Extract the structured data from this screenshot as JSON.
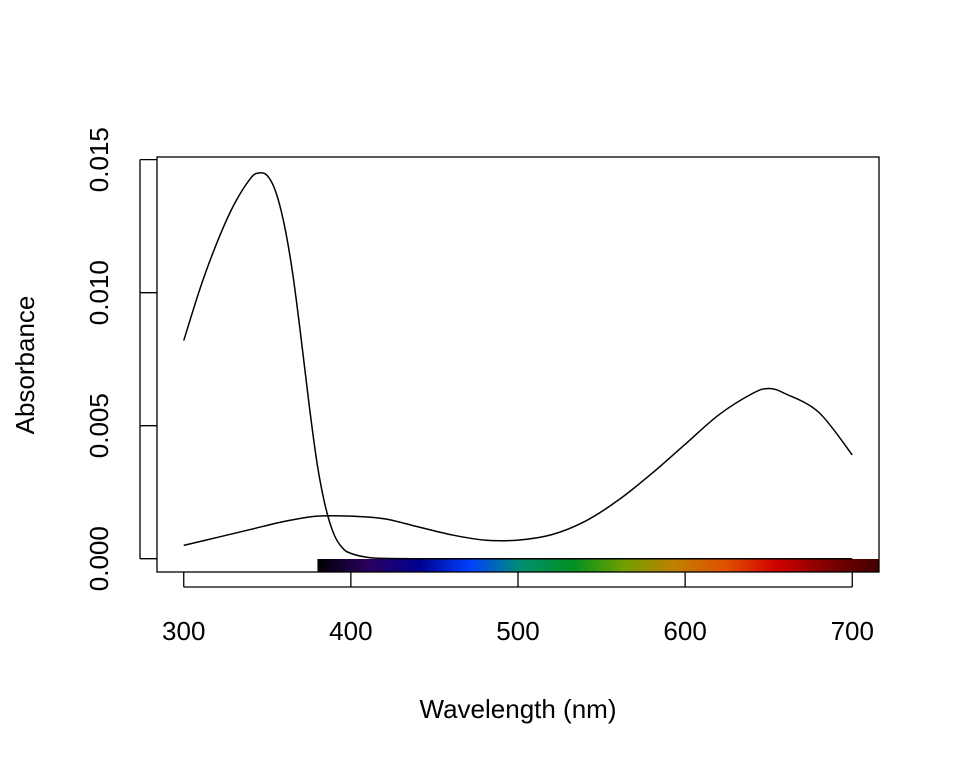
{
  "chart_data": {
    "type": "line",
    "title": "",
    "xlabel": "Wavelength (nm)",
    "ylabel": "Absorbance",
    "xlim": [
      284,
      716
    ],
    "ylim": [
      -0.0005,
      0.0151
    ],
    "x_ticks": [
      300,
      400,
      500,
      600,
      700
    ],
    "x_tick_labels": [
      "300",
      "400",
      "500",
      "600",
      "700"
    ],
    "y_ticks": [
      0,
      0.005,
      0.01,
      0.015
    ],
    "y_tick_labels": [
      "0.000",
      "0.005",
      "0.010",
      "0.015"
    ],
    "grid": false,
    "spectrum_bar": {
      "x_range": [
        380,
        716
      ],
      "colors": [
        "#000000",
        "#2a0060",
        "#000090",
        "#0040ff",
        "#009070",
        "#009020",
        "#70a000",
        "#c08000",
        "#e05000",
        "#d00000",
        "#800000",
        "#400000"
      ]
    },
    "series": [
      {
        "x": [
          300,
          310,
          320,
          330,
          340,
          345,
          350,
          355,
          360,
          365,
          370,
          375,
          380,
          385,
          390,
          395,
          400,
          410,
          420,
          440,
          500,
          600,
          700
        ],
        "y": [
          0.0082,
          0.0102,
          0.0119,
          0.0133,
          0.0143,
          0.0145,
          0.0144,
          0.0138,
          0.0126,
          0.0108,
          0.0084,
          0.0058,
          0.0035,
          0.0019,
          0.0009,
          0.0004,
          0.0002,
          5e-05,
          1e-05,
          0.0,
          0.0,
          0.0,
          0.0
        ]
      },
      {
        "x": [
          300,
          320,
          340,
          360,
          380,
          400,
          420,
          440,
          460,
          480,
          500,
          520,
          540,
          560,
          580,
          600,
          620,
          640,
          650,
          660,
          680,
          700
        ],
        "y": [
          0.0005,
          0.0008,
          0.0011,
          0.0014,
          0.0016,
          0.0016,
          0.0015,
          0.0012,
          0.0009,
          0.0007,
          0.0007,
          0.0009,
          0.0014,
          0.0022,
          0.0032,
          0.0043,
          0.0054,
          0.0062,
          0.0064,
          0.0062,
          0.0055,
          0.0039
        ]
      }
    ]
  }
}
